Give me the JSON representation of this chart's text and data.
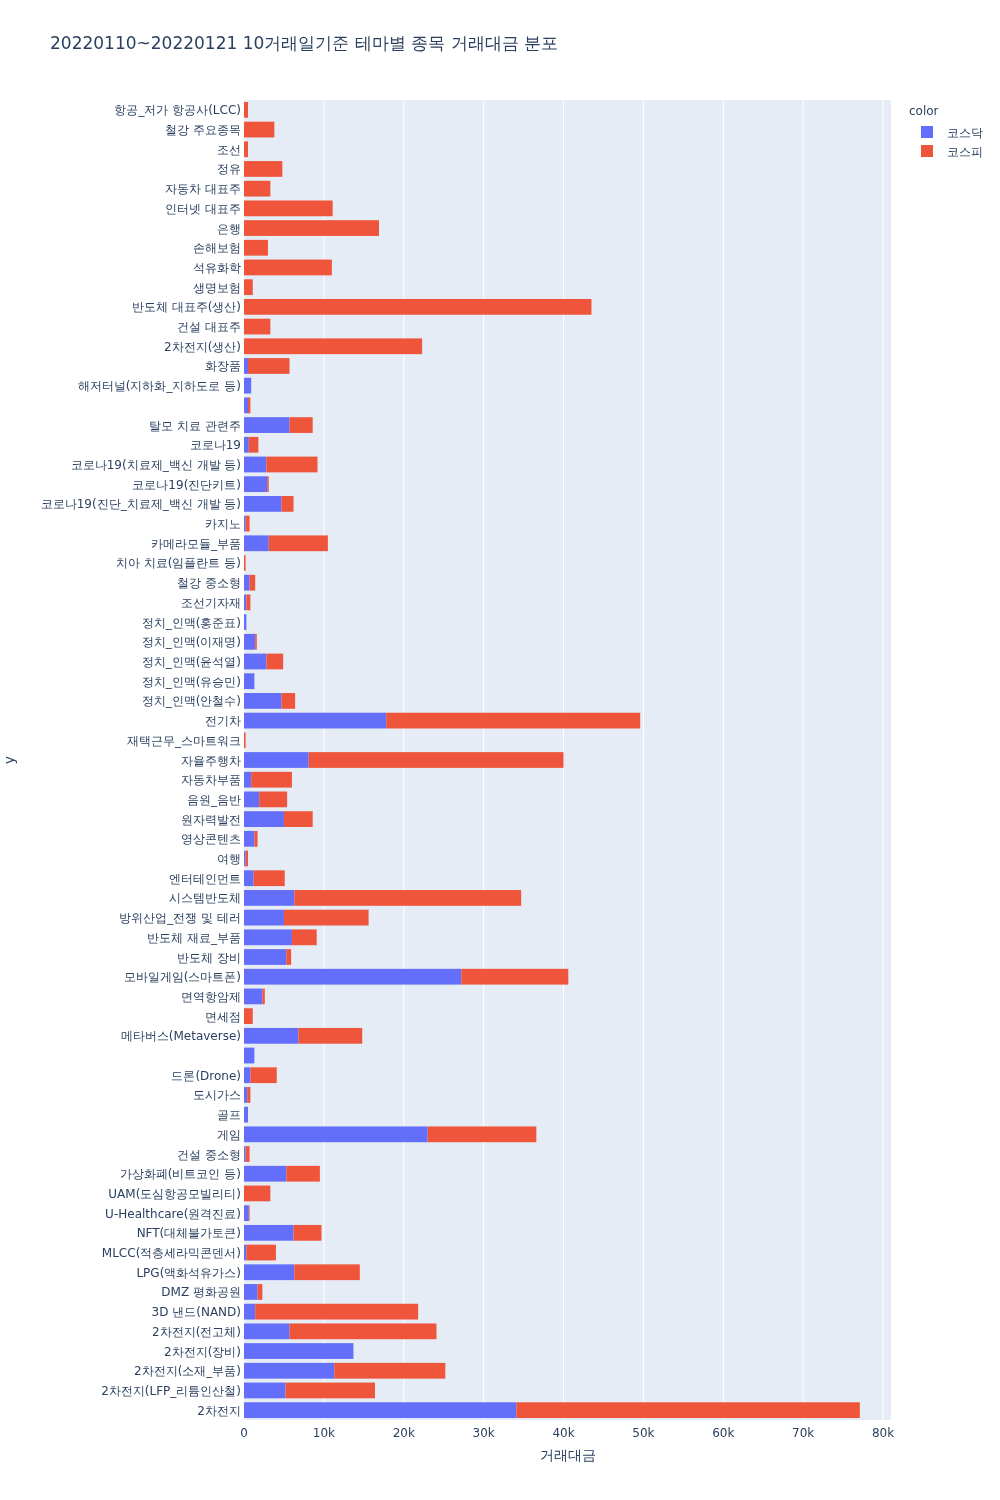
{
  "chart_data": {
    "type": "bar",
    "orientation": "horizontal",
    "stacked": true,
    "title": "20220110~20220121 10거래일기준 테마별 종목 거래대금 분포",
    "xlabel": "거래대금",
    "ylabel": "y",
    "legend_title": "color",
    "categories": [
      "항공_저가 항공사(LCC)",
      "철강 주요종목",
      "조선",
      "정유",
      "자동차 대표주",
      "인터넷 대표주",
      "은행",
      "손해보험",
      "석유화학",
      "생명보험",
      "반도체 대표주(생산)",
      "건설 대표주",
      "2차전지(생산)",
      "화장품",
      "해저터널(지하화_지하도로 등)",
      null,
      "탈모 치료 관련주",
      "코로나19",
      "코로나19(치료제_백신 개발 등)",
      "코로나19(진단키트)",
      "코로나19(진단_치료제_백신 개발 등)",
      "카지노",
      "카메라모듈_부품",
      "치아 치료(임플란트 등)",
      "철강 중소형",
      "조선기자재",
      "정치_인맥(홍준표)",
      "정치_인맥(이재명)",
      "정치_인맥(윤석열)",
      "정치_인맥(유승민)",
      "정치_인맥(안철수)",
      "전기차",
      "재택근무_스마트워크",
      "자율주행차",
      "자동차부품",
      "음원_음반",
      "원자력발전",
      "영상콘텐츠",
      "여행",
      "엔터테인먼트",
      "시스템반도체",
      "방위산업_전쟁 및 테러",
      "반도체 재료_부품",
      "반도체 장비",
      "모바일게임(스마트폰)",
      "면역항암제",
      "면세점",
      "메타버스(Metaverse)",
      null,
      "드론(Drone)",
      "도시가스",
      "골프",
      "게임",
      "건설 중소형",
      "가상화폐(비트코인 등)",
      "UAM(도심항공모빌리티)",
      "U-Healthcare(원격진료)",
      "NFT(대체불가토큰)",
      "MLCC(적층세라믹콘덴서)",
      "LPG(액화석유가스)",
      "DMZ 평화공원",
      "3D 낸드(NAND)",
      "2차전지(전고체)",
      "2차전지(장비)",
      "2차전지(소재_부품)",
      "2차전지(LFP_리튬인산철)",
      "2차전지"
    ],
    "series": [
      {
        "name": "코스닥",
        "color": "#636efa",
        "values": [
          0,
          0,
          0,
          0,
          0,
          0,
          0,
          0,
          0,
          0,
          0,
          0,
          0,
          500,
          900,
          500,
          5700,
          600,
          2800,
          2900,
          4700,
          200,
          3100,
          0,
          700,
          300,
          300,
          1400,
          2800,
          1300,
          4700,
          17800,
          0,
          8100,
          900,
          1900,
          5000,
          1300,
          200,
          1200,
          6300,
          5000,
          6000,
          5300,
          27200,
          2300,
          0,
          6800,
          1300,
          800,
          400,
          500,
          23000,
          200,
          5300,
          0,
          600,
          6200,
          300,
          6300,
          1700,
          1400,
          5700,
          13700,
          11300,
          5200,
          34100
        ]
      },
      {
        "name": "코스피",
        "color": "#ef553b",
        "values": [
          500,
          3800,
          500,
          4800,
          3300,
          11100,
          16900,
          3000,
          11000,
          1100,
          43500,
          3300,
          22300,
          5200,
          0,
          300,
          2900,
          1200,
          6400,
          200,
          1500,
          500,
          7400,
          200,
          700,
          500,
          0,
          200,
          2100,
          0,
          1700,
          31800,
          200,
          31900,
          5100,
          3500,
          3600,
          400,
          300,
          3900,
          28400,
          10600,
          3100,
          600,
          13400,
          300,
          1100,
          8000,
          0,
          3300,
          400,
          0,
          13600,
          500,
          4200,
          3300,
          100,
          3500,
          3700,
          8200,
          600,
          20400,
          18400,
          0,
          13900,
          11200,
          43000
        ]
      }
    ],
    "xlim": [
      0,
      81000
    ],
    "xticks": [
      0,
      {
        "value": 10000,
        "label": "10k"
      },
      {
        "value": 20000,
        "label": "20k"
      },
      {
        "value": 30000,
        "label": "30k"
      },
      {
        "value": 40000,
        "label": "40k"
      },
      {
        "value": 50000,
        "label": "50k"
      },
      {
        "value": 60000,
        "label": "60k"
      },
      {
        "value": 70000,
        "label": "70k"
      },
      {
        "value": 80000,
        "label": "80k"
      }
    ],
    "grid": "x",
    "legend": "right"
  }
}
